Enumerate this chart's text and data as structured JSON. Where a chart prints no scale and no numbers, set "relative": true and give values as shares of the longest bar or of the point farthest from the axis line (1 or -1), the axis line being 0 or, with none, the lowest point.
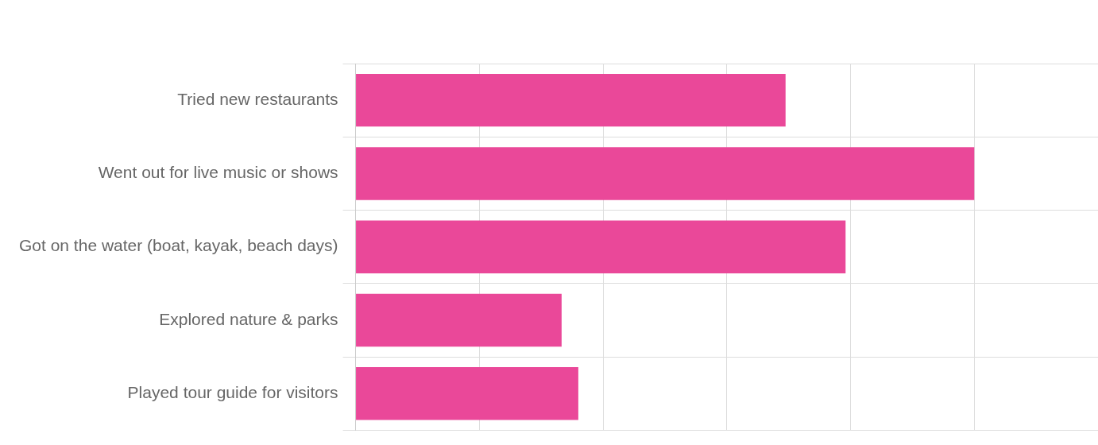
{
  "chart_data": {
    "type": "bar",
    "orientation": "horizontal",
    "relative": true,
    "grid": true,
    "legend": false,
    "categories": [
      "Tried new restaurants",
      "Went out for live music or shows",
      "Got on the water (boat, kayak, beach days)",
      "Explored nature & parks",
      "Played tour guide for visitors"
    ],
    "values": [
      0.695,
      1,
      0.792,
      0.333,
      0.36
    ],
    "color": "#ea4899"
  }
}
